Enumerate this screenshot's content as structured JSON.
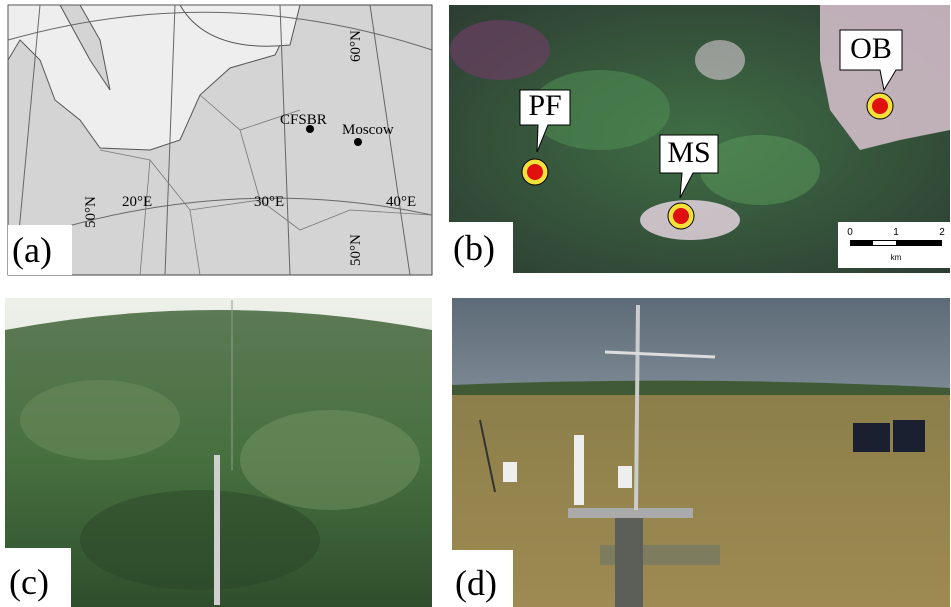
{
  "map": {
    "label": "(a)",
    "lat_labels": [
      "60°N",
      "50°N",
      "50°N"
    ],
    "lon_labels": [
      "20°E",
      "30°E",
      "40°E"
    ],
    "places": [
      "CFSBR",
      "Moscow"
    ]
  },
  "satellite": {
    "label": "(b)",
    "sites": [
      "PF",
      "MS",
      "OB"
    ],
    "scale": {
      "ticks": [
        "0",
        "1",
        "2"
      ],
      "unit": "km"
    }
  },
  "forest_photo": {
    "label": "(c)"
  },
  "bog_photo": {
    "label": "(d)"
  }
}
